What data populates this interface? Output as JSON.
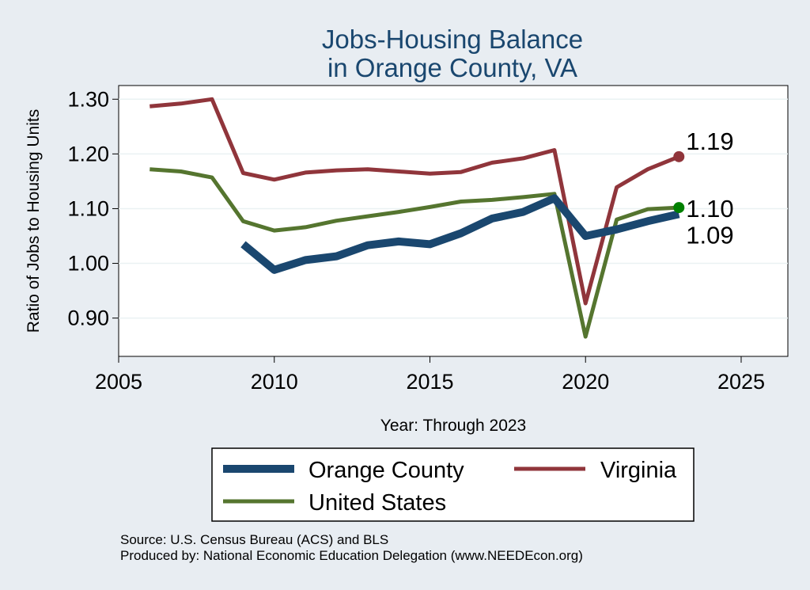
{
  "chart_data": {
    "type": "line",
    "title_lines": [
      "Jobs-Housing Balance",
      "in Orange County, VA"
    ],
    "xlabel": "Year: Through 2023",
    "ylabel": "Ratio of Jobs to Housing Units",
    "xlim": [
      2005,
      2026.5
    ],
    "ylim": [
      0.83,
      1.325
    ],
    "x_ticks": [
      2005,
      2010,
      2015,
      2020,
      2025
    ],
    "y_ticks": [
      0.9,
      1.0,
      1.1,
      1.2,
      1.3
    ],
    "y_tick_labels": [
      "0.90",
      "1.00",
      "1.10",
      "1.20",
      "1.30"
    ],
    "grid": true,
    "series": [
      {
        "name": "Orange County",
        "color": "#1a476f",
        "x": [
          2009,
          2010,
          2011,
          2012,
          2013,
          2014,
          2015,
          2016,
          2017,
          2018,
          2019,
          2020,
          2021,
          2022,
          2023
        ],
        "values": [
          1.035,
          0.988,
          1.006,
          1.013,
          1.033,
          1.04,
          1.035,
          1.055,
          1.082,
          1.094,
          1.119,
          1.05,
          1.062,
          1.077,
          1.09
        ],
        "end_label": "1.09"
      },
      {
        "name": "Virginia",
        "color": "#90353b",
        "x": [
          2006,
          2007,
          2008,
          2009,
          2010,
          2011,
          2012,
          2013,
          2014,
          2015,
          2016,
          2017,
          2018,
          2019,
          2020,
          2021,
          2022,
          2023
        ],
        "values": [
          1.287,
          1.292,
          1.3,
          1.165,
          1.153,
          1.166,
          1.17,
          1.172,
          1.168,
          1.164,
          1.167,
          1.184,
          1.192,
          1.207,
          0.927,
          1.139,
          1.172,
          1.195
        ],
        "end_label": "1.19"
      },
      {
        "name": "United States",
        "color": "#55752f",
        "end_marker_color": "#008000",
        "x": [
          2006,
          2007,
          2008,
          2009,
          2010,
          2011,
          2012,
          2013,
          2014,
          2015,
          2016,
          2017,
          2018,
          2019,
          2020,
          2021,
          2022,
          2023
        ],
        "values": [
          1.172,
          1.168,
          1.157,
          1.077,
          1.06,
          1.066,
          1.078,
          1.086,
          1.094,
          1.103,
          1.113,
          1.116,
          1.121,
          1.127,
          0.866,
          1.08,
          1.099,
          1.102
        ],
        "end_label": "1.10"
      }
    ]
  },
  "source_note": {
    "line1": "Source: U.S. Census Bureau (ACS) and BLS",
    "line2": "Produced by: National Economic Education Delegation (www.NEEDEcon.org)"
  }
}
